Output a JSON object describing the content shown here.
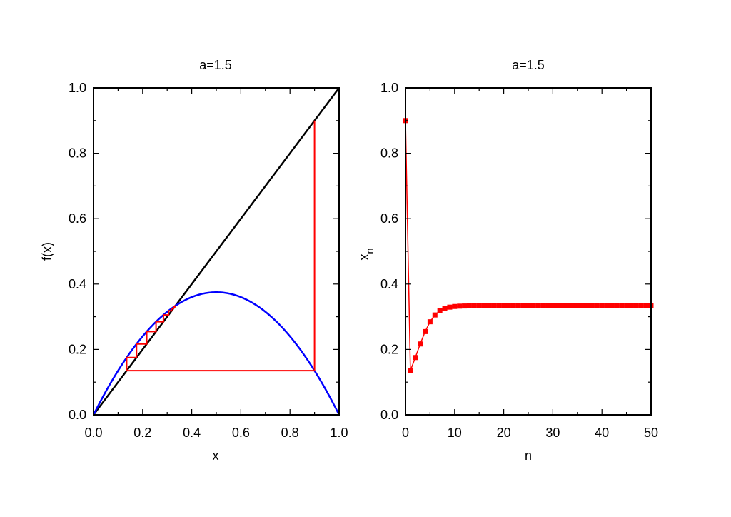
{
  "chart_data": [
    {
      "type": "line",
      "title": "a=1.5",
      "xlabel": "x",
      "ylabel": "f(x)",
      "xlim": [
        0,
        1
      ],
      "ylim": [
        0,
        1
      ],
      "x_ticks": [
        "0.0",
        "0.2",
        "0.4",
        "0.6",
        "0.8",
        "1.0"
      ],
      "y_ticks": [
        "0.0",
        "0.2",
        "0.4",
        "0.6",
        "0.8",
        "1.0"
      ],
      "series": [
        {
          "color": "#000000",
          "function": "y = x",
          "x_range": [
            0,
            1
          ]
        },
        {
          "color": "#0000ff",
          "function": "f(x) = 1.5*x*(1-x)",
          "x_range": [
            0,
            1
          ]
        },
        {
          "color": "#ff0000",
          "style": "cobweb",
          "x0": 0.9,
          "r": 1.5,
          "iterations": 12
        }
      ],
      "grid": false
    },
    {
      "type": "line",
      "title": "a=1.5",
      "xlabel": "n",
      "ylabel_main": "x",
      "ylabel_sub": "n",
      "xlim": [
        0,
        50
      ],
      "ylim": [
        0,
        1
      ],
      "x_ticks": [
        "0",
        "10",
        "20",
        "30",
        "40",
        "50"
      ],
      "y_ticks": [
        "0.0",
        "0.2",
        "0.4",
        "0.6",
        "0.8",
        "1.0"
      ],
      "series": [
        {
          "color": "#ff0000",
          "marker": "square",
          "n": [
            0,
            1,
            2,
            3,
            4,
            5,
            6,
            7,
            8,
            9,
            10,
            11,
            12,
            13,
            14,
            15,
            16,
            17,
            18,
            19,
            20,
            21,
            22,
            23,
            24,
            25,
            26,
            27,
            28,
            29,
            30,
            31,
            32,
            33,
            34,
            35,
            36,
            37,
            38,
            39,
            40,
            41,
            42,
            43,
            44,
            45,
            46,
            47,
            48,
            49,
            50
          ],
          "values": [
            0.9,
            0.135,
            0.1752,
            0.2167,
            0.2546,
            0.2846,
            0.3054,
            0.3182,
            0.3254,
            0.3293,
            0.3313,
            0.3323,
            0.3328,
            0.3331,
            0.3332,
            0.3332,
            0.3333,
            0.3333,
            0.3333,
            0.3333,
            0.3333,
            0.3333,
            0.3333,
            0.3333,
            0.3333,
            0.3333,
            0.3333,
            0.3333,
            0.3333,
            0.3333,
            0.3333,
            0.3333,
            0.3333,
            0.3333,
            0.3333,
            0.3333,
            0.3333,
            0.3333,
            0.3333,
            0.3333,
            0.3333,
            0.3333,
            0.3333,
            0.3333,
            0.3333,
            0.3333,
            0.3333,
            0.3333,
            0.3333,
            0.3333,
            0.3333
          ]
        }
      ],
      "grid": false
    }
  ]
}
